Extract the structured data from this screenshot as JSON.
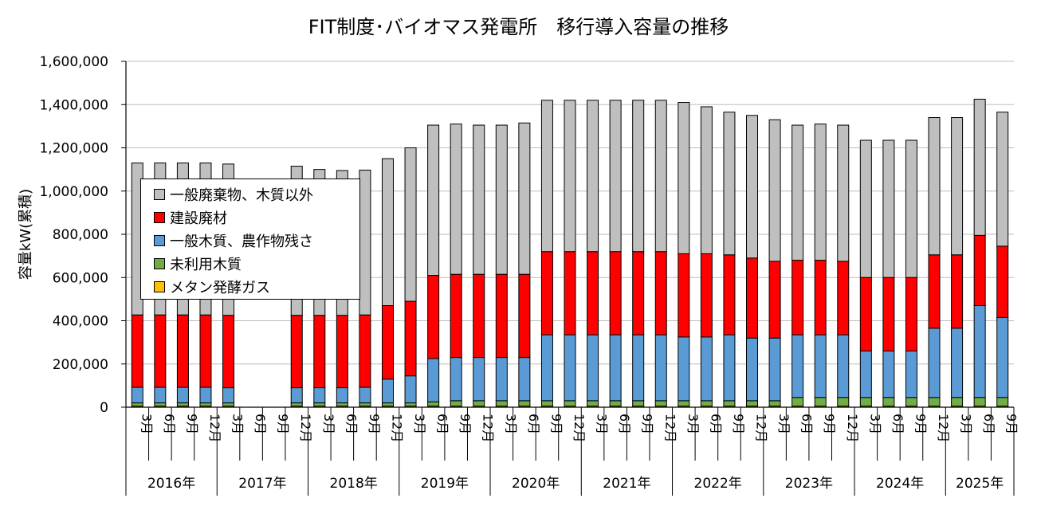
{
  "chart_data": {
    "type": "bar",
    "stacked": true,
    "title": "FIT制度･バイオマス発電所　移行導入容量の推移",
    "ylabel": "容量kW(累積)",
    "xlabel": "",
    "ylim": [
      0,
      1600000
    ],
    "yticks": [
      "0",
      "200,000",
      "400,000",
      "600,000",
      "800,000",
      "1,000,000",
      "1,200,000",
      "1,400,000",
      "1,600,000"
    ],
    "legend_position": "left-middle",
    "categories": [
      "3月",
      "6月",
      "9月",
      "12月",
      "3月",
      "6月",
      "9月",
      "12月",
      "3月",
      "6月",
      "9月",
      "12月",
      "3月",
      "6月",
      "9月",
      "12月",
      "3月",
      "6月",
      "9月",
      "12月",
      "3月",
      "6月",
      "9月",
      "12月",
      "3月",
      "6月",
      "9月",
      "12月",
      "3月",
      "6月",
      "9月",
      "12月",
      "3月",
      "6月",
      "9月",
      "12月",
      "3月",
      "6月",
      "9月"
    ],
    "year_groups": [
      {
        "label": "2016年",
        "count": 4
      },
      {
        "label": "2017年",
        "count": 4
      },
      {
        "label": "2018年",
        "count": 4
      },
      {
        "label": "2019年",
        "count": 4
      },
      {
        "label": "2020年",
        "count": 4
      },
      {
        "label": "2021年",
        "count": 4
      },
      {
        "label": "2022年",
        "count": 4
      },
      {
        "label": "2023年",
        "count": 4
      },
      {
        "label": "2024年",
        "count": 4
      },
      {
        "label": "2025年",
        "count": 3
      }
    ],
    "series": [
      {
        "name": "メタン発酵ガス",
        "color": "#ffc000",
        "values": [
          5000,
          5000,
          5000,
          5000,
          5000,
          null,
          null,
          5000,
          5000,
          5000,
          5000,
          5000,
          5000,
          5000,
          5000,
          5000,
          5000,
          5000,
          5000,
          5000,
          5000,
          5000,
          5000,
          5000,
          5000,
          5000,
          5000,
          5000,
          5000,
          5000,
          5000,
          5000,
          5000,
          5000,
          5000,
          5000,
          5000,
          5000,
          5000
        ]
      },
      {
        "name": "未利用木質",
        "color": "#70ad47",
        "values": [
          15000,
          15000,
          15000,
          15000,
          15000,
          null,
          null,
          15000,
          15000,
          15000,
          15000,
          15000,
          15000,
          20000,
          25000,
          25000,
          25000,
          25000,
          25000,
          25000,
          25000,
          25000,
          25000,
          25000,
          25000,
          25000,
          25000,
          25000,
          25000,
          40000,
          40000,
          40000,
          40000,
          40000,
          40000,
          40000,
          40000,
          40000,
          40000
        ]
      },
      {
        "name": "一般木質、農作物残さ",
        "color": "#5b9bd5",
        "values": [
          72000,
          72000,
          72000,
          72000,
          70000,
          null,
          null,
          70000,
          70000,
          70000,
          72000,
          110000,
          125000,
          200000,
          200000,
          200000,
          200000,
          200000,
          305000,
          305000,
          305000,
          305000,
          305000,
          305000,
          295000,
          295000,
          305000,
          290000,
          290000,
          290000,
          290000,
          290000,
          215000,
          215000,
          215000,
          320000,
          320000,
          425000,
          370000
        ]
      },
      {
        "name": "建設廃材",
        "color": "#ff0000",
        "values": [
          335000,
          335000,
          335000,
          335000,
          335000,
          null,
          null,
          335000,
          335000,
          335000,
          335000,
          340000,
          345000,
          385000,
          385000,
          385000,
          385000,
          385000,
          385000,
          385000,
          385000,
          385000,
          385000,
          385000,
          385000,
          385000,
          370000,
          370000,
          355000,
          345000,
          345000,
          340000,
          340000,
          340000,
          340000,
          340000,
          340000,
          325000,
          330000
        ]
      },
      {
        "name": "一般廃棄物、木質以外",
        "color": "#bfbfbf",
        "values": [
          703000,
          703000,
          703000,
          703000,
          700000,
          null,
          null,
          690000,
          675000,
          670000,
          670000,
          680000,
          710000,
          695000,
          695000,
          690000,
          690000,
          700000,
          700000,
          700000,
          700000,
          700000,
          700000,
          700000,
          700000,
          680000,
          660000,
          660000,
          655000,
          625000,
          630000,
          630000,
          635000,
          635000,
          635000,
          635000,
          635000,
          630000,
          620000
        ]
      }
    ]
  }
}
